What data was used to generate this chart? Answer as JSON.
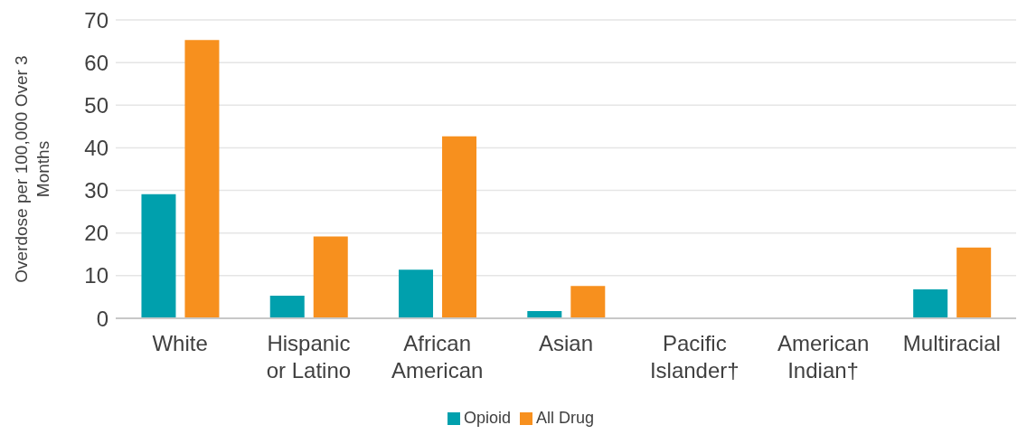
{
  "chart_data": {
    "type": "bar",
    "ylabel": "Overdose per 100,000 Over 3 Months",
    "categories": [
      "White",
      "Hispanic or Latino",
      "African American",
      "Asian",
      "Pacific Islander†",
      "American Indian†",
      "Multiracial"
    ],
    "series": [
      {
        "name": "Opioid",
        "color": "#00a0ad",
        "values": [
          29.1,
          5.3,
          11.4,
          1.7,
          null,
          null,
          6.8
        ]
      },
      {
        "name": "All Drug",
        "color": "#f7901e",
        "values": [
          65.3,
          19.2,
          42.7,
          7.6,
          null,
          null,
          16.6
        ]
      }
    ],
    "ylim": [
      0,
      70
    ],
    "yticks": [
      0,
      10,
      20,
      30,
      40,
      50,
      60,
      70
    ],
    "grid": "y",
    "legend": "bottom"
  }
}
